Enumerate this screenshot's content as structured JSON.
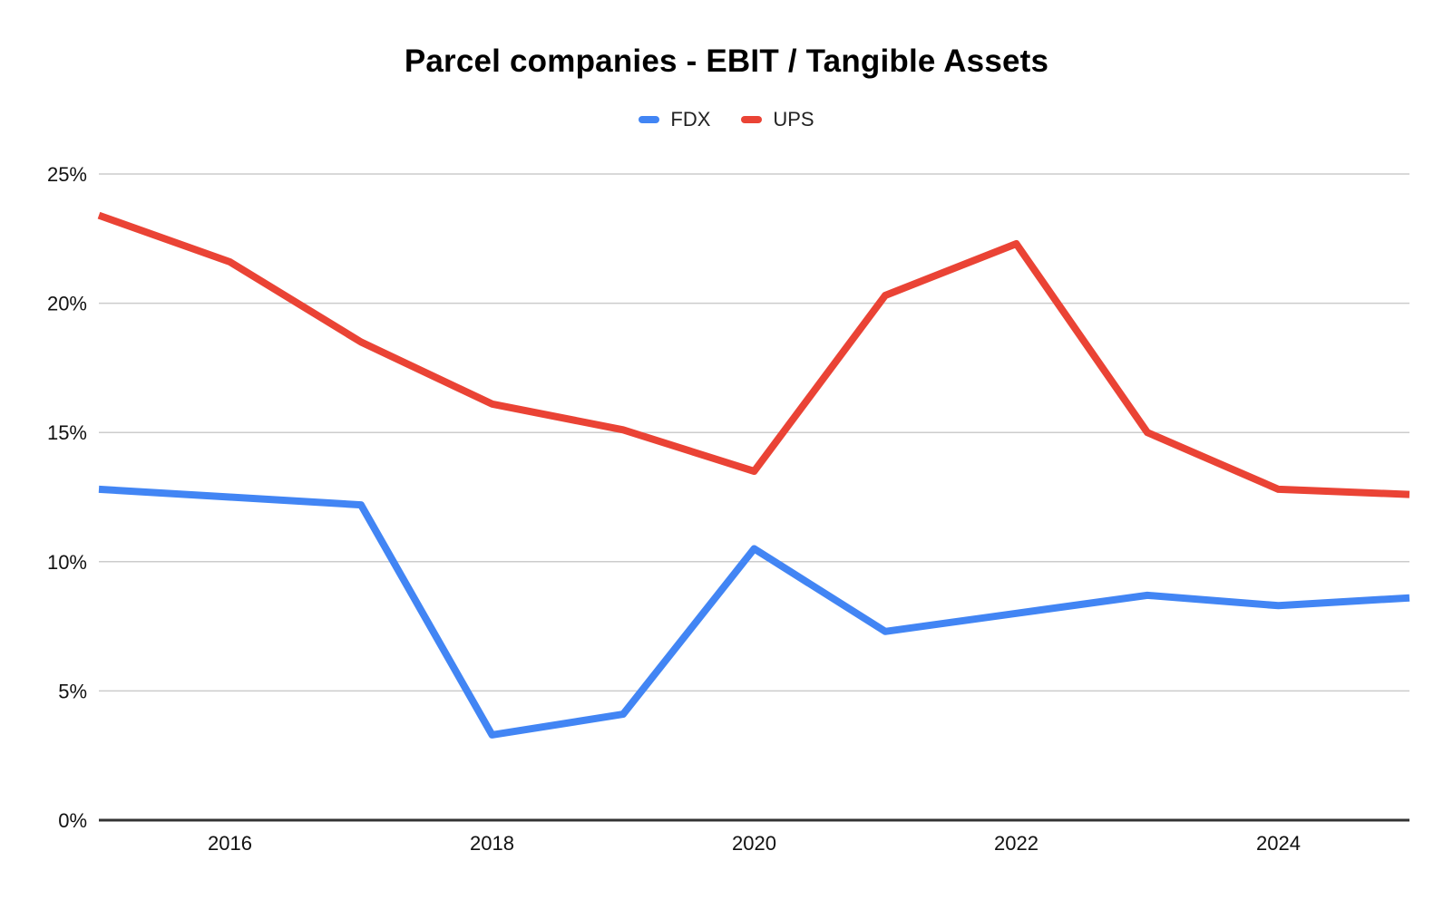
{
  "chart_data": {
    "type": "line",
    "title": "Parcel companies - EBIT / Tangible Assets",
    "x": [
      2015,
      2016,
      2017,
      2018,
      2019,
      2020,
      2021,
      2022,
      2023,
      2024,
      2025
    ],
    "series": [
      {
        "name": "FDX",
        "color": "#4285F4",
        "values": [
          12.8,
          12.5,
          12.2,
          3.3,
          4.1,
          10.5,
          7.3,
          8.0,
          8.7,
          8.3,
          8.6
        ]
      },
      {
        "name": "UPS",
        "color": "#EA4335",
        "values": [
          23.4,
          21.6,
          18.5,
          16.1,
          15.1,
          13.5,
          20.3,
          22.3,
          15.0,
          12.8,
          12.6
        ]
      }
    ],
    "xlabel": "",
    "ylabel": "",
    "ylim": [
      0,
      25
    ],
    "xlim": [
      2015,
      2025
    ],
    "grid": true,
    "legend_position": "top",
    "y_ticks": [
      {
        "value": 0,
        "label": "0%"
      },
      {
        "value": 5,
        "label": "5%"
      },
      {
        "value": 10,
        "label": "10%"
      },
      {
        "value": 15,
        "label": "15%"
      },
      {
        "value": 20,
        "label": "20%"
      },
      {
        "value": 25,
        "label": "25%"
      }
    ],
    "x_ticks": [
      {
        "value": 2016,
        "label": "2016"
      },
      {
        "value": 2018,
        "label": "2018"
      },
      {
        "value": 2020,
        "label": "2020"
      },
      {
        "value": 2022,
        "label": "2022"
      },
      {
        "value": 2024,
        "label": "2024"
      }
    ]
  },
  "legend": {
    "items": [
      {
        "label": "FDX",
        "color": "#4285F4"
      },
      {
        "label": "UPS",
        "color": "#EA4335"
      }
    ]
  },
  "colors": {
    "background": "#ffffff",
    "gridline": "#cccccc",
    "axis_line": "#333333",
    "tick_text": "#111111",
    "title_text": "#000000",
    "legend_text": "#222222"
  }
}
